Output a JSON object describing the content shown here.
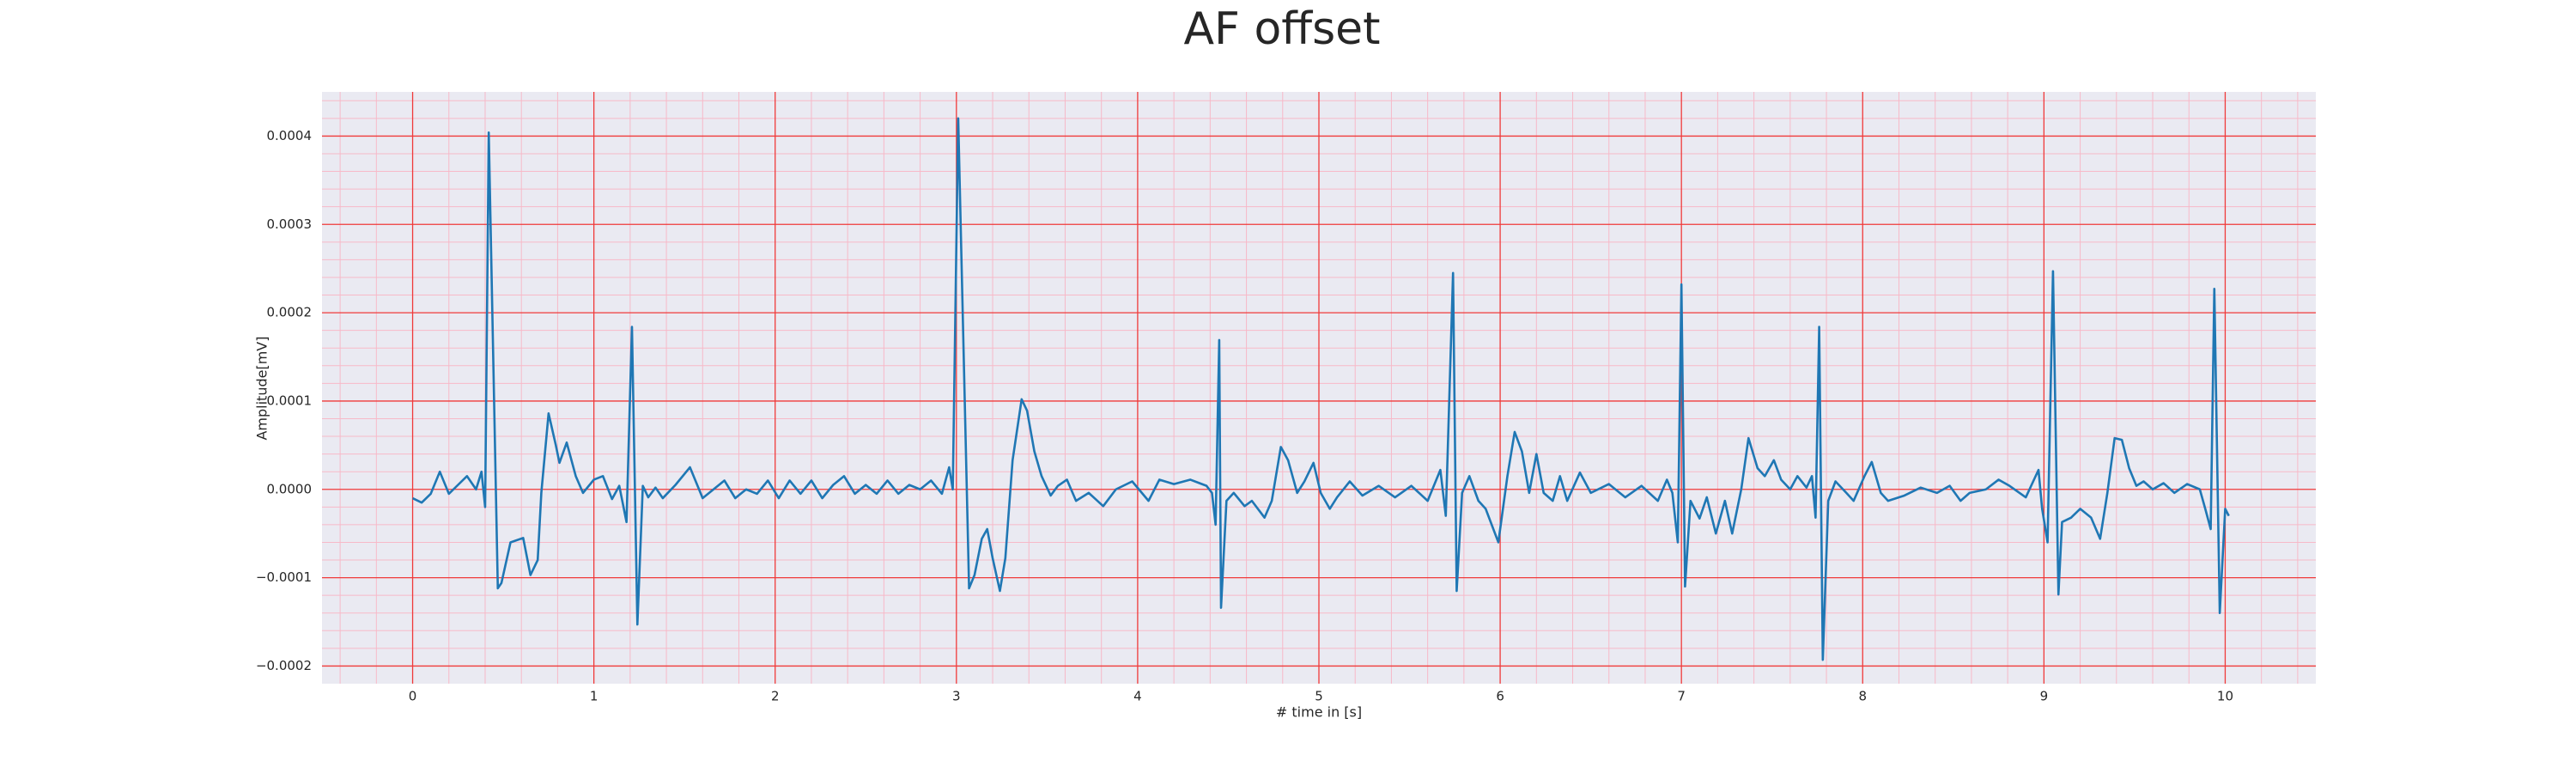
{
  "chart_data": {
    "type": "line",
    "title": "AF offset",
    "xlabel": "# time in [s]",
    "ylabel": "Amplitude[mV]",
    "color": "#1f77b4",
    "grid": true,
    "grid_color": "#f03a3a",
    "minor_grid_color": "#f7b9c8",
    "background": "#eaeaf2",
    "xlim": [
      -0.5,
      10.5
    ],
    "ylim": [
      -0.00022,
      0.00045
    ],
    "xticks": [
      0,
      1,
      2,
      3,
      4,
      5,
      6,
      7,
      8,
      9,
      10
    ],
    "yticks": [
      {
        "value": -0.0002,
        "label": "−0.0002"
      },
      {
        "value": -0.0001,
        "label": "−0.0001"
      },
      {
        "value": 0,
        "label": "0.0000"
      },
      0.0001,
      0.0002,
      0.0003,
      0.0004
    ],
    "minor_xticks": [
      -0.4,
      -0.2,
      0.2,
      0.4,
      0.6,
      0.8,
      1.2,
      1.4,
      1.6,
      1.8,
      2.2,
      2.4,
      2.6,
      2.8,
      3.2,
      3.4,
      3.6,
      3.8,
      4.2,
      4.4,
      4.6,
      4.8,
      5.2,
      5.4,
      5.6,
      5.8,
      6.2,
      6.4,
      6.6,
      6.8,
      7.2,
      7.4,
      7.6,
      7.8,
      8.2,
      8.4,
      8.6,
      8.8,
      9.2,
      9.4,
      9.6,
      9.8,
      10.2,
      10.4
    ],
    "minor_yticks": [
      -0.00018,
      -0.00016,
      -0.00014,
      -0.00012,
      -8e-05,
      -6e-05,
      -4e-05,
      -2e-05,
      2e-05,
      4e-05,
      6e-05,
      8e-05,
      0.00012,
      0.00014,
      0.00016,
      0.00018,
      0.00022,
      0.00024,
      0.00026,
      0.00028,
      0.00032,
      0.00034,
      0.00036,
      0.00038,
      0.00042,
      0.00044
    ],
    "x": [
      0,
      0.05,
      0.1,
      0.15,
      0.2,
      0.25,
      0.3,
      0.35,
      0.38,
      0.4,
      0.42,
      0.47,
      0.49,
      0.54,
      0.61,
      0.65,
      0.69,
      0.71,
      0.75,
      0.79,
      0.81,
      0.85,
      0.9,
      0.94,
      1.0,
      1.05,
      1.1,
      1.14,
      1.18,
      1.21,
      1.24,
      1.27,
      1.3,
      1.34,
      1.38,
      1.45,
      1.53,
      1.6,
      1.66,
      1.72,
      1.78,
      1.84,
      1.9,
      1.96,
      2.02,
      2.08,
      2.14,
      2.2,
      2.26,
      2.32,
      2.38,
      2.44,
      2.5,
      2.56,
      2.62,
      2.68,
      2.74,
      2.8,
      2.86,
      2.92,
      2.96,
      2.98,
      3.01,
      3.07,
      3.1,
      3.14,
      3.17,
      3.2,
      3.24,
      3.27,
      3.31,
      3.36,
      3.39,
      3.43,
      3.47,
      3.52,
      3.56,
      3.61,
      3.66,
      3.73,
      3.81,
      3.88,
      3.97,
      4.06,
      4.12,
      4.2,
      4.29,
      4.38,
      4.41,
      4.43,
      4.45,
      4.46,
      4.49,
      4.53,
      4.59,
      4.63,
      4.7,
      4.74,
      4.79,
      4.83,
      4.88,
      4.92,
      4.97,
      5.01,
      5.06,
      5.1,
      5.17,
      5.24,
      5.33,
      5.42,
      5.51,
      5.6,
      5.67,
      5.7,
      5.74,
      5.76,
      5.79,
      5.83,
      5.88,
      5.92,
      5.99,
      6.04,
      6.08,
      6.12,
      6.16,
      6.2,
      6.24,
      6.29,
      6.33,
      6.37,
      6.44,
      6.5,
      6.6,
      6.69,
      6.78,
      6.87,
      6.92,
      6.95,
      6.98,
      7.0,
      7.02,
      7.05,
      7.1,
      7.14,
      7.19,
      7.24,
      7.28,
      7.33,
      7.37,
      7.42,
      7.46,
      7.51,
      7.55,
      7.6,
      7.64,
      7.69,
      7.72,
      7.74,
      7.76,
      7.78,
      7.81,
      7.85,
      7.91,
      7.95,
      8.01,
      8.05,
      8.1,
      8.14,
      8.23,
      8.32,
      8.41,
      8.48,
      8.54,
      8.59,
      8.68,
      8.75,
      8.81,
      8.9,
      8.97,
      8.99,
      9.02,
      9.05,
      9.08,
      9.1,
      9.15,
      9.2,
      9.26,
      9.31,
      9.35,
      9.39,
      9.43,
      9.47,
      9.51,
      9.55,
      9.6,
      9.66,
      9.72,
      9.79,
      9.86,
      9.89,
      9.92,
      9.94,
      9.97,
      10.0,
      10.02
    ],
    "values": [
      -1e-05,
      -1.5e-05,
      -5e-06,
      2e-05,
      -5e-06,
      5e-06,
      1.5e-05,
      0,
      2e-05,
      -2e-05,
      0.000404,
      -0.000112,
      -0.000106,
      -6e-05,
      -5.5e-05,
      -9.7e-05,
      -8e-05,
      -4e-06,
      8.6e-05,
      5e-05,
      3e-05,
      5.3e-05,
      1.5e-05,
      -4e-06,
      1.1e-05,
      1.5e-05,
      -1.1e-05,
      4e-06,
      -3.7e-05,
      0.000184,
      -0.000153,
      4e-06,
      -9e-06,
      2e-06,
      -1e-05,
      5e-06,
      2.5e-05,
      -1e-05,
      0,
      1e-05,
      -1e-05,
      0,
      -5e-06,
      1e-05,
      -1e-05,
      1e-05,
      -5e-06,
      1e-05,
      -1e-05,
      5e-06,
      1.5e-05,
      -5e-06,
      5e-06,
      -5e-06,
      1e-05,
      -5e-06,
      5e-06,
      0,
      1e-05,
      -5e-06,
      2.5e-05,
      0,
      0.00042,
      -0.000112,
      -9.7e-05,
      -5.6e-05,
      -4.5e-05,
      -7.8e-05,
      -0.000115,
      -7.8e-05,
      3.3e-05,
      0.000102,
      8.9e-05,
      4.3e-05,
      1.5e-05,
      -7e-06,
      4e-06,
      1.1e-05,
      -1.3e-05,
      -4e-06,
      -1.9e-05,
      0,
      9e-06,
      -1.3e-05,
      1.1e-05,
      6e-06,
      1.1e-05,
      4e-06,
      -4e-06,
      -4e-05,
      0.000169,
      -0.000134,
      -1.3e-05,
      -4e-06,
      -1.9e-05,
      -1.3e-05,
      -3.2e-05,
      -1.3e-05,
      4.8e-05,
      3.3e-05,
      -4e-06,
      9e-06,
      3e-05,
      -4e-06,
      -2.2e-05,
      -9e-06,
      9e-06,
      -7e-06,
      4e-06,
      -9e-06,
      4e-06,
      -1.3e-05,
      2.2e-05,
      -3e-05,
      0.000245,
      -0.000115,
      -4e-06,
      1.5e-05,
      -1.3e-05,
      -2.2e-05,
      -6e-05,
      1.5e-05,
      6.5e-05,
      4.3e-05,
      -4e-06,
      4e-05,
      -4e-06,
      -1.3e-05,
      1.5e-05,
      -1.3e-05,
      1.9e-05,
      -4e-06,
      6e-06,
      -9e-06,
      4e-06,
      -1.3e-05,
      1.1e-05,
      -4e-06,
      -6e-05,
      0.000232,
      -0.00011,
      -1.3e-05,
      -3.3e-05,
      -9e-06,
      -5e-05,
      -1.3e-05,
      -5e-05,
      0,
      5.8e-05,
      2.4e-05,
      1.5e-05,
      3.3e-05,
      1.1e-05,
      0,
      1.5e-05,
      2e-06,
      1.5e-05,
      -3.2e-05,
      0.000184,
      -0.000193,
      -1.3e-05,
      9e-06,
      -4e-06,
      -1.3e-05,
      1.5e-05,
      3.1e-05,
      -4e-06,
      -1.3e-05,
      -7e-06,
      2e-06,
      -4e-06,
      4e-06,
      -1.3e-05,
      -4e-06,
      0,
      1.1e-05,
      4e-06,
      -9e-06,
      2.2e-05,
      -2.2e-05,
      -6e-05,
      0.000247,
      -0.000119,
      -3.7e-05,
      -3.2e-05,
      -2.2e-05,
      -3.2e-05,
      -5.6e-05,
      -4e-06,
      5.8e-05,
      5.6e-05,
      2.4e-05,
      4e-06,
      9e-06,
      0,
      7e-06,
      -4e-06,
      6e-06,
      0,
      -2.2e-05,
      -4.5e-05,
      0.000227,
      -0.00014,
      -2.2e-05,
      -3e-05
    ]
  }
}
